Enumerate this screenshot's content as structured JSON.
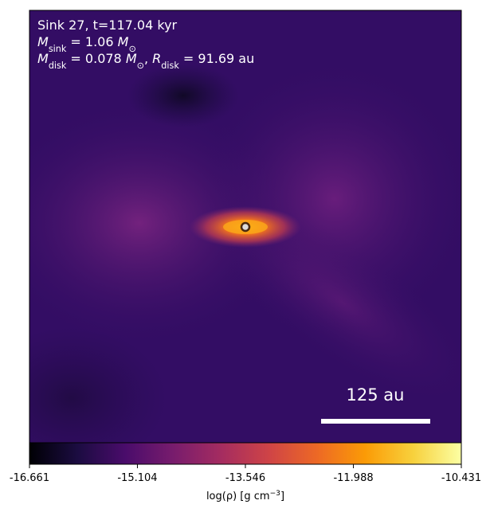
{
  "chart_data": {
    "type": "image",
    "annotations": [
      [
        {
          "text": "Sink 27, t=117.04 kyr"
        }
      ],
      [
        {
          "text": "M",
          "italic": true
        },
        {
          "sub": "sink"
        },
        {
          "text": " = 1.06 "
        },
        {
          "text": "M",
          "italic": true
        },
        {
          "sub": "⊙"
        }
      ],
      [
        {
          "text": "M",
          "italic": true
        },
        {
          "sub": "disk"
        },
        {
          "text": " = 0.078 "
        },
        {
          "text": "M",
          "italic": true
        },
        {
          "sub": "⊙"
        },
        {
          "text": ", "
        },
        {
          "text": "R",
          "italic": true
        },
        {
          "sub": "disk"
        },
        {
          "text": " = 91.69 au"
        }
      ]
    ],
    "scale_bar": "125 au",
    "colorbar": {
      "label": [
        {
          "text": "log(ρ) [g cm"
        },
        {
          "sup": "−3"
        },
        {
          "text": "]"
        }
      ],
      "clim": [
        -16.661,
        -10.431
      ],
      "ticks": [
        -16.661,
        -15.104,
        -13.546,
        -11.988,
        -10.431
      ],
      "cmap": "inferno"
    }
  }
}
